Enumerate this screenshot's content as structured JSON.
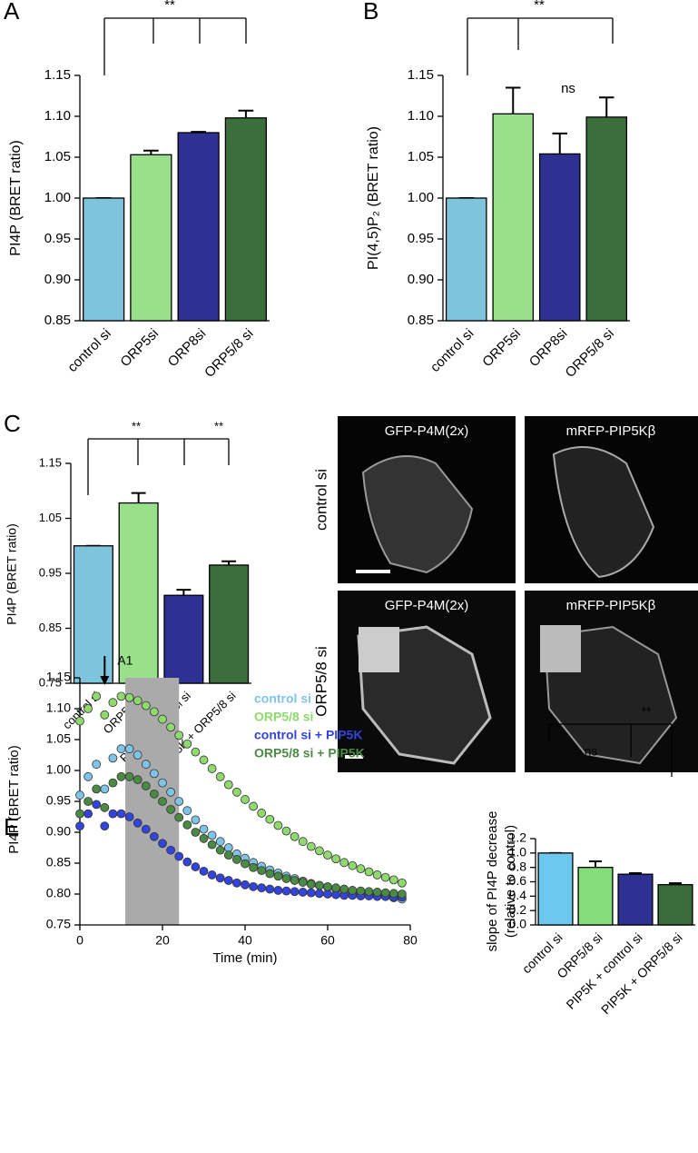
{
  "chart_data": [
    {
      "type": "bar",
      "panel": "A",
      "ylabel": "PI4P (BRET ratio)",
      "categories": [
        "control si",
        "ORP5si",
        "ORP8si",
        "ORP5/8 si"
      ],
      "values": [
        1.0,
        1.053,
        1.08,
        1.098
      ],
      "errors": [
        0,
        0.005,
        0.001,
        0.009
      ],
      "colors": [
        "#7ec4dc",
        "#98e08a",
        "#2e3192",
        "#3c6e3c"
      ],
      "ylim": [
        0.85,
        1.15
      ],
      "yticks": [
        0.85,
        {
          "value": 0.9,
          "label": "0.90"
        },
        0.95,
        {
          "value": 1,
          "label": "1.00"
        },
        1.05,
        {
          "value": 1.1,
          "label": "1.10"
        },
        1.15
      ],
      "annotations": [
        "**"
      ]
    },
    {
      "type": "bar",
      "panel": "B",
      "ylabel": "PI(4,5)P₂ (BRET ratio)",
      "categories": [
        "control si",
        "ORP5si",
        "ORP8si",
        "ORP5/8 si"
      ],
      "values": [
        1.0,
        1.103,
        1.054,
        1.099
      ],
      "errors": [
        0,
        0.032,
        0.025,
        0.024
      ],
      "colors": [
        "#7ec4dc",
        "#98e08a",
        "#2e3192",
        "#3c6e3c"
      ],
      "ylim": [
        0.85,
        1.15
      ],
      "yticks": [
        0.85,
        {
          "value": 0.9,
          "label": "0.90"
        },
        0.95,
        {
          "value": 1,
          "label": "1.00"
        },
        1.05,
        {
          "value": 1.1,
          "label": "1.10"
        },
        1.15
      ],
      "annotations": [
        "**",
        "ns"
      ]
    },
    {
      "type": "bar",
      "panel": "C",
      "ylabel": "PI4P (BRET ratio)",
      "categories": [
        "control si",
        "ORP5/8 si",
        "PIP5K + control si",
        "PIP5K + ORP5/8 si"
      ],
      "values": [
        1.0,
        1.078,
        0.91,
        0.965
      ],
      "errors": [
        0,
        0.018,
        0.01,
        0.007
      ],
      "colors": [
        "#7ec4dc",
        "#98e08a",
        "#2e3192",
        "#3c6e3c"
      ],
      "ylim": [
        0.75,
        1.15
      ],
      "yticks": [
        0.75,
        0.85,
        0.95,
        1.05,
        1.15
      ],
      "annotations": [
        "**",
        "**"
      ]
    },
    {
      "type": "scatter",
      "panel": "E",
      "ylabel": "PI4P (BRET ratio)",
      "xlabel": "Time (min)",
      "x": [
        0,
        2,
        4,
        6,
        8,
        10,
        12,
        14,
        16,
        18,
        20,
        22,
        24,
        26,
        28,
        30,
        32,
        34,
        36,
        38,
        40,
        42,
        44,
        46,
        48,
        50,
        52,
        54,
        56,
        58,
        60,
        62,
        64,
        66,
        68,
        70,
        72,
        74,
        76,
        78
      ],
      "series": [
        {
          "name": "control si",
          "color": "#7ec4e6",
          "values": [
            0.96,
            0.99,
            1.01,
            0.97,
            1.02,
            1.035,
            1.035,
            1.025,
            1.01,
            0.995,
            0.98,
            0.965,
            0.95,
            0.935,
            0.92,
            0.905,
            0.895,
            0.885,
            0.875,
            0.865,
            0.858,
            0.851,
            0.845,
            0.839,
            0.834,
            0.829,
            0.825,
            0.821,
            0.817,
            0.814,
            0.811,
            0.808,
            0.806,
            0.804,
            0.802,
            0.8,
            0.798,
            0.796,
            0.794,
            0.792
          ]
        },
        {
          "name": "ORP5/8 si",
          "color": "#8fd96e",
          "values": [
            1.08,
            1.1,
            1.12,
            1.09,
            1.11,
            1.12,
            1.118,
            1.113,
            1.105,
            1.095,
            1.083,
            1.07,
            1.057,
            1.043,
            1.03,
            1.017,
            1.003,
            0.99,
            0.977,
            0.965,
            0.953,
            0.942,
            0.931,
            0.921,
            0.911,
            0.902,
            0.893,
            0.885,
            0.877,
            0.87,
            0.863,
            0.857,
            0.851,
            0.846,
            0.841,
            0.836,
            0.831,
            0.827,
            0.823,
            0.818
          ]
        },
        {
          "name": "control si + PIP5K",
          "color": "#3344dd",
          "values": [
            0.91,
            0.93,
            0.945,
            0.91,
            0.93,
            0.93,
            0.925,
            0.915,
            0.905,
            0.893,
            0.882,
            0.871,
            0.861,
            0.852,
            0.844,
            0.837,
            0.831,
            0.826,
            0.822,
            0.818,
            0.815,
            0.812,
            0.81,
            0.808,
            0.806,
            0.805,
            0.804,
            0.803,
            0.802,
            0.801,
            0.8,
            0.799,
            0.798,
            0.798,
            0.797,
            0.797,
            0.796,
            0.796,
            0.795,
            0.795
          ]
        },
        {
          "name": "ORP5/8 si + PIP5K",
          "color": "#4a8a44",
          "values": [
            0.93,
            0.95,
            0.97,
            0.94,
            0.98,
            0.99,
            0.99,
            0.985,
            0.975,
            0.962,
            0.95,
            0.937,
            0.924,
            0.912,
            0.9,
            0.89,
            0.88,
            0.871,
            0.863,
            0.856,
            0.849,
            0.843,
            0.838,
            0.833,
            0.829,
            0.825,
            0.822,
            0.819,
            0.816,
            0.814,
            0.812,
            0.81,
            0.808,
            0.806,
            0.805,
            0.804,
            0.803,
            0.802,
            0.801,
            0.8
          ]
        }
      ],
      "xlim": [
        0,
        80
      ],
      "xticks": [
        0,
        20,
        40,
        60,
        80
      ],
      "ylim": [
        0.75,
        1.15
      ],
      "yticks": [
        0.75,
        {
          "value": 0.8,
          "label": "0.80"
        },
        0.85,
        {
          "value": 0.9,
          "label": "0.90"
        },
        0.95,
        {
          "value": 1,
          "label": "1.00"
        },
        1.05,
        {
          "value": 1.1,
          "label": "1.10"
        },
        1.15
      ],
      "highlight_x": [
        11,
        24
      ],
      "annotations": [
        {
          "text": "A1",
          "x": 6
        }
      ]
    },
    {
      "type": "bar",
      "ylabel": [
        "slope of PI4P decrease",
        "(relative to control)"
      ],
      "categories": [
        "control si",
        "ORP5/8 si",
        "PIP5K + control si",
        "PIP5K + ORP5/8 si"
      ],
      "values": [
        1.0,
        0.8,
        0.705,
        0.56
      ],
      "errors": [
        0,
        0.085,
        0.015,
        0.02
      ],
      "colors": [
        "#6cc8ec",
        "#85dd7a",
        "#2e3192",
        "#3a6b3a"
      ],
      "ylim": [
        0,
        1.2
      ],
      "yticks": [
        {
          "value": 0,
          "label": "0.0"
        },
        0.2,
        0.4,
        0.6,
        0.8,
        {
          "value": 1,
          "label": "1.0"
        },
        1.2
      ],
      "annotations": [
        "ns",
        "**"
      ]
    }
  ],
  "panel_d": {
    "panel": "D",
    "columns": [
      "GFP-P4M(2x)",
      "mRFP-PIP5Kβ"
    ],
    "rows": [
      "control si",
      "ORP5/8 si"
    ]
  }
}
